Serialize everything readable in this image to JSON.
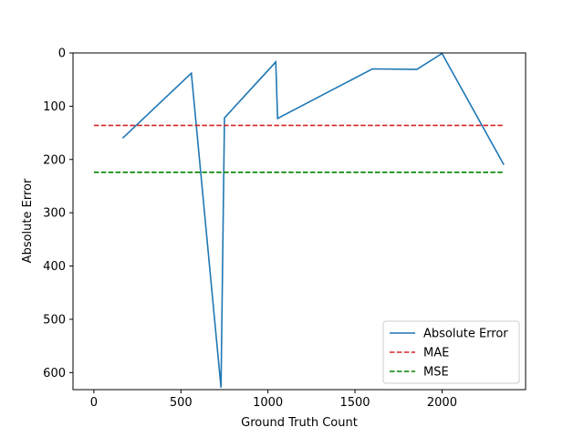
{
  "chart_data": {
    "type": "line",
    "title": "",
    "xlabel": "Ground Truth Count",
    "ylabel": "Absolute Error",
    "xlim": [
      -120,
      2480
    ],
    "ylim": [
      632,
      0
    ],
    "y_inverted": true,
    "grid": false,
    "legend_position": "lower right",
    "xticks": [
      0,
      500,
      1000,
      1500,
      2000
    ],
    "yticks": [
      0,
      100,
      200,
      300,
      400,
      500,
      600
    ],
    "series": [
      {
        "name": "Absolute Error",
        "kind": "line",
        "color": "#1f77b4",
        "x": [
          165,
          560,
          730,
          750,
          1045,
          1055,
          1600,
          1855,
          2000,
          2355
        ],
        "y": [
          160,
          38,
          628,
          122,
          17,
          123,
          30,
          31,
          1,
          210
        ]
      },
      {
        "name": "MAE",
        "kind": "hline",
        "color": "#d62728",
        "x": [
          0,
          2355
        ],
        "y": [
          136,
          136
        ]
      },
      {
        "name": "MSE",
        "kind": "hline",
        "color": "#008000",
        "x": [
          0,
          2355
        ],
        "y": [
          224,
          224
        ]
      }
    ]
  }
}
